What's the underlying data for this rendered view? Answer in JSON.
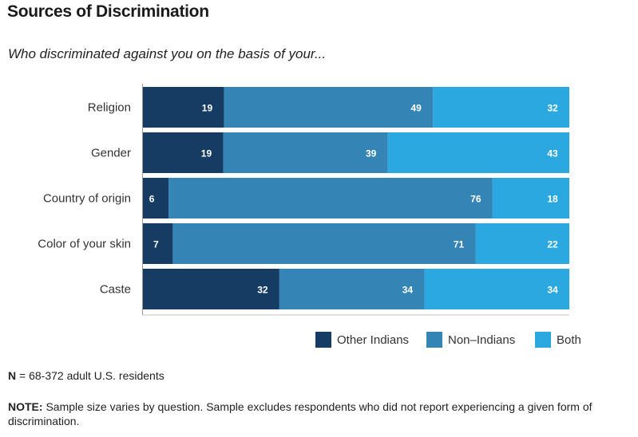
{
  "chart_data": {
    "type": "bar",
    "orientation": "horizontal",
    "stacked": true,
    "title": "Sources of Discrimination",
    "subtitle": "Who discriminated against you on the basis of your...",
    "categories": [
      "Religion",
      "Gender",
      "Country of origin",
      "Color of your skin",
      "Caste"
    ],
    "series": [
      {
        "name": "Other Indians",
        "color": "#163c63",
        "values": [
          19,
          19,
          6,
          7,
          32
        ]
      },
      {
        "name": "Non–Indians",
        "color": "#3584b6",
        "values": [
          49,
          39,
          76,
          71,
          34
        ]
      },
      {
        "name": "Both",
        "color": "#2aa8df",
        "values": [
          32,
          43,
          18,
          22,
          34
        ]
      }
    ],
    "xlim": [
      0,
      100
    ],
    "legend": "bottom-right",
    "grid": false
  },
  "footer": {
    "n_label": "N",
    "n_text": " = 68-372 adult U.S. residents",
    "note_label": "NOTE:",
    "note_text": " Sample size varies by question. Sample excludes respondents who did not report experiencing a given form of discrimination."
  }
}
